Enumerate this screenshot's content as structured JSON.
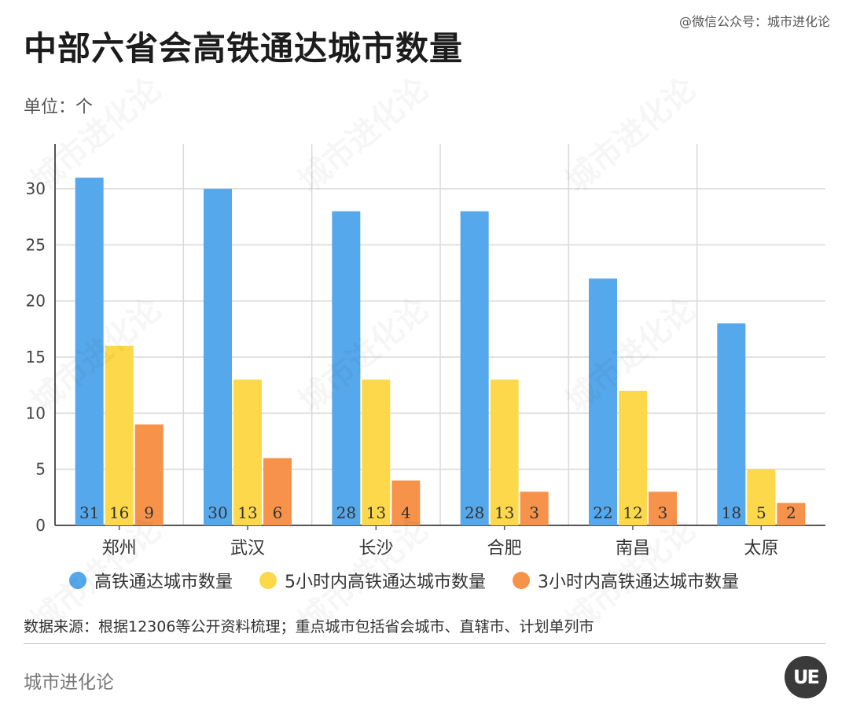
{
  "header": {
    "title": "中部六省会高铁通达城市数量",
    "source_top": "@微信公众号：城市进化论",
    "unit": "单位：个"
  },
  "footer": {
    "footnote": "数据来源：根据12306等公开资料梳理；重点城市包括省会城市、直辖市、计划单列市",
    "brand": "城市进化论",
    "logo_text": "UE",
    "watermark_text": "城市进化论"
  },
  "colors": {
    "series": [
      "#56a8ec",
      "#fcd84a",
      "#f6924a"
    ],
    "grid": "#d9d9d9",
    "axis": "#555555"
  },
  "chart_data": {
    "type": "bar",
    "title": "中部六省会高铁通达城市数量",
    "ylabel": "单位：个",
    "xlabel": "",
    "categories": [
      "郑州",
      "武汉",
      "长沙",
      "合肥",
      "南昌",
      "太原"
    ],
    "yticks": [
      0,
      5,
      10,
      15,
      20,
      25,
      30
    ],
    "ylim": [
      0,
      34
    ],
    "grid": true,
    "legend_position": "bottom",
    "series": [
      {
        "name": "高铁通达城市数量",
        "values": [
          31,
          30,
          28,
          28,
          22,
          18
        ]
      },
      {
        "name": "5小时内高铁通达城市数量",
        "values": [
          16,
          13,
          13,
          13,
          12,
          5
        ]
      },
      {
        "name": "3小时内高铁通达城市数量",
        "values": [
          9,
          6,
          4,
          3,
          3,
          2
        ]
      }
    ]
  }
}
